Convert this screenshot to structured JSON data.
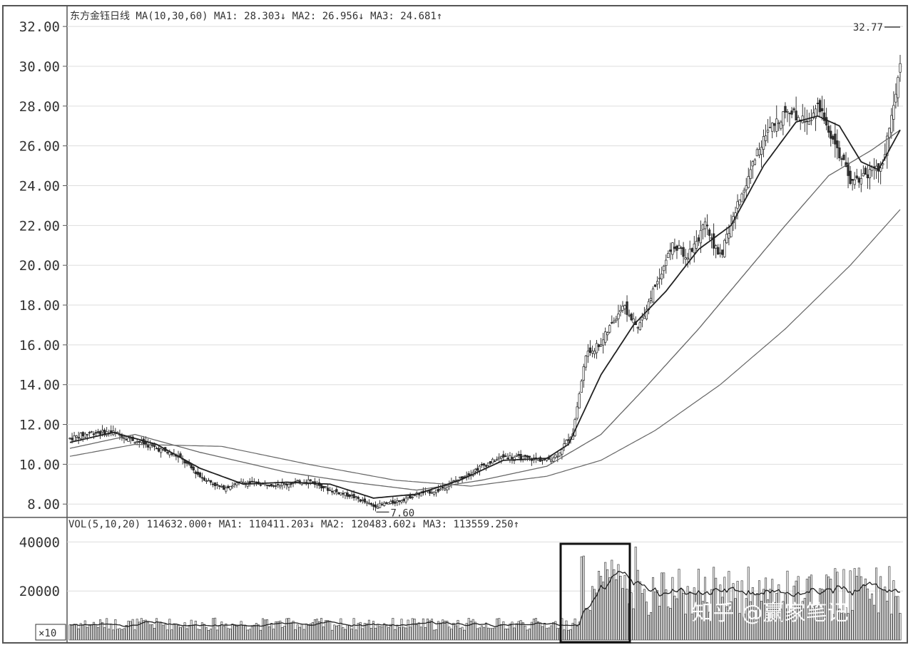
{
  "chart_data": {
    "type": "candlestick",
    "price_panel": {
      "header_left": "东方金钰日线",
      "ma_label": "MA(10,30,60)",
      "ma_values": [
        {
          "name": "MA1",
          "value": "28.303",
          "arrow": "↓"
        },
        {
          "name": "MA2",
          "value": "26.956",
          "arrow": "↓"
        },
        {
          "name": "MA3",
          "value": "24.681",
          "arrow": "↑"
        }
      ],
      "y_ticks": [
        "32.00",
        "30.00",
        "28.00",
        "26.00",
        "24.00",
        "22.00",
        "20.00",
        "18.00",
        "16.00",
        "14.00",
        "12.00",
        "10.00",
        "8.00"
      ],
      "ylim": [
        7.4,
        32.9
      ],
      "low_annotation": "7.60",
      "high_annotation": "32.77",
      "price_series_approx": [
        [
          0,
          11.3
        ],
        [
          10,
          11.6
        ],
        [
          20,
          11.6
        ],
        [
          30,
          11.2
        ],
        [
          40,
          10.8
        ],
        [
          50,
          10.4
        ],
        [
          60,
          9.4
        ],
        [
          70,
          8.8
        ],
        [
          80,
          9.1
        ],
        [
          90,
          9.0
        ],
        [
          100,
          9.0
        ],
        [
          110,
          9.2
        ],
        [
          120,
          8.7
        ],
        [
          130,
          8.4
        ],
        [
          140,
          7.9
        ],
        [
          150,
          8.1
        ],
        [
          160,
          8.5
        ],
        [
          170,
          8.7
        ],
        [
          180,
          9.3
        ],
        [
          190,
          9.9
        ],
        [
          200,
          10.4
        ],
        [
          210,
          10.3
        ],
        [
          220,
          10.2
        ],
        [
          225,
          10.5
        ],
        [
          232,
          11.6
        ],
        [
          238,
          15.5
        ],
        [
          245,
          16.1
        ],
        [
          255,
          18.0
        ],
        [
          262,
          16.8
        ],
        [
          270,
          19.0
        ],
        [
          278,
          21.0
        ],
        [
          285,
          20.5
        ],
        [
          293,
          22.0
        ],
        [
          300,
          20.4
        ],
        [
          308,
          23.0
        ],
        [
          318,
          26.0
        ],
        [
          330,
          27.8
        ],
        [
          340,
          27.3
        ],
        [
          345,
          27.9
        ],
        [
          352,
          26.4
        ],
        [
          360,
          24.2
        ],
        [
          368,
          24.6
        ],
        [
          375,
          25.0
        ],
        [
          383,
          30.0
        ]
      ],
      "ma10_approx": [
        [
          0,
          11.1
        ],
        [
          20,
          11.6
        ],
        [
          40,
          11.0
        ],
        [
          60,
          9.8
        ],
        [
          80,
          9.0
        ],
        [
          100,
          9.1
        ],
        [
          120,
          9.0
        ],
        [
          140,
          8.3
        ],
        [
          160,
          8.5
        ],
        [
          180,
          9.2
        ],
        [
          200,
          10.2
        ],
        [
          220,
          10.3
        ],
        [
          230,
          11.0
        ],
        [
          245,
          14.5
        ],
        [
          260,
          17.0
        ],
        [
          275,
          18.7
        ],
        [
          290,
          20.8
        ],
        [
          305,
          22.0
        ],
        [
          320,
          25.0
        ],
        [
          335,
          27.2
        ],
        [
          345,
          27.5
        ],
        [
          355,
          27.0
        ],
        [
          365,
          25.2
        ],
        [
          373,
          24.8
        ],
        [
          383,
          26.8
        ]
      ],
      "ma30_approx": [
        [
          0,
          10.8
        ],
        [
          30,
          11.5
        ],
        [
          60,
          10.6
        ],
        [
          100,
          9.6
        ],
        [
          130,
          9.1
        ],
        [
          160,
          8.7
        ],
        [
          190,
          9.2
        ],
        [
          220,
          9.9
        ],
        [
          245,
          11.5
        ],
        [
          265,
          13.8
        ],
        [
          290,
          16.8
        ],
        [
          310,
          19.4
        ],
        [
          330,
          22.0
        ],
        [
          350,
          24.5
        ],
        [
          370,
          25.8
        ],
        [
          383,
          26.8
        ]
      ],
      "ma60_approx": [
        [
          0,
          10.4
        ],
        [
          30,
          11.0
        ],
        [
          70,
          10.9
        ],
        [
          110,
          10.0
        ],
        [
          150,
          9.2
        ],
        [
          185,
          8.9
        ],
        [
          220,
          9.4
        ],
        [
          245,
          10.2
        ],
        [
          270,
          11.7
        ],
        [
          300,
          14.0
        ],
        [
          330,
          16.8
        ],
        [
          360,
          20.0
        ],
        [
          383,
          22.8
        ]
      ]
    },
    "volume_panel": {
      "header": "VOL(5,10,20)",
      "vol_value": "114632.000",
      "vol_arrow": "↑",
      "ma_values": [
        {
          "name": "MA1",
          "value": "110411.203",
          "arrow": "↓"
        },
        {
          "name": "MA2",
          "value": "120483.602",
          "arrow": "↓"
        },
        {
          "name": "MA3",
          "value": "113559.250",
          "arrow": "↑"
        }
      ],
      "y_ticks": [
        "40000",
        "20000"
      ],
      "unit_label": "×10",
      "ylim": [
        0,
        50000
      ]
    },
    "watermark": "知乎 @赢家笔记"
  },
  "colors": {
    "grid": "#dddddd",
    "axis": "#555555",
    "line": "#222222",
    "ma_thin": "#666666",
    "highlight_box": "#111111"
  }
}
